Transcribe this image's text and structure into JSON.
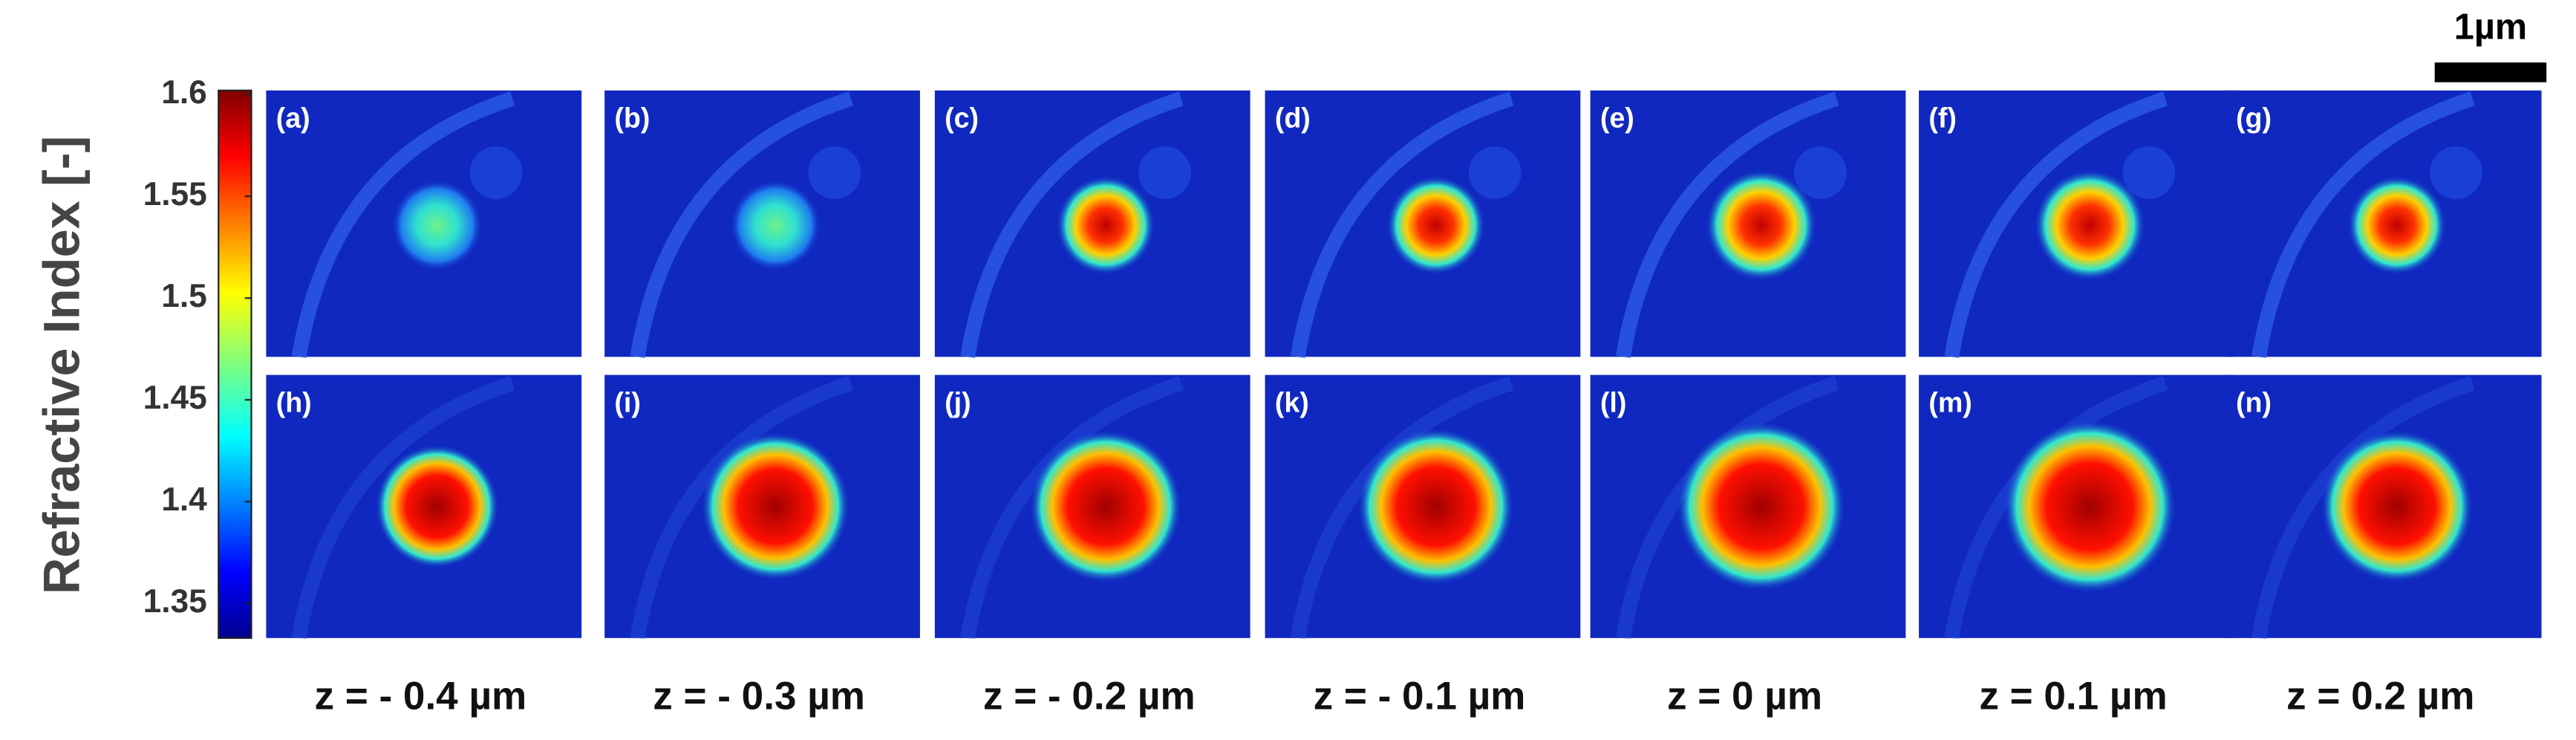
{
  "colorbar": {
    "label": "Refractive Index [-]",
    "lim": [
      1.333,
      1.602
    ],
    "ticks": [
      1.6,
      1.55,
      1.5,
      1.45,
      1.4,
      1.35
    ]
  },
  "scale_bar": {
    "label": "1µm"
  },
  "panels": [
    {
      "label": "(a)"
    },
    {
      "label": "(b)"
    },
    {
      "label": "(c)"
    },
    {
      "label": "(d)"
    },
    {
      "label": "(e)"
    },
    {
      "label": "(f)"
    },
    {
      "label": "(g)"
    },
    {
      "label": "(h)"
    },
    {
      "label": "(i)"
    },
    {
      "label": "(j)"
    },
    {
      "label": "(k)"
    },
    {
      "label": "(l)"
    },
    {
      "label": "(m)"
    },
    {
      "label": "(n)"
    }
  ],
  "z_labels": [
    "z = - 0.4 µm",
    "z = - 0.3 µm",
    "z = - 0.2 µm",
    "z = - 0.1 µm",
    "z = 0 µm",
    "z = 0.1 µm",
    "z = 0.2 µm"
  ]
}
